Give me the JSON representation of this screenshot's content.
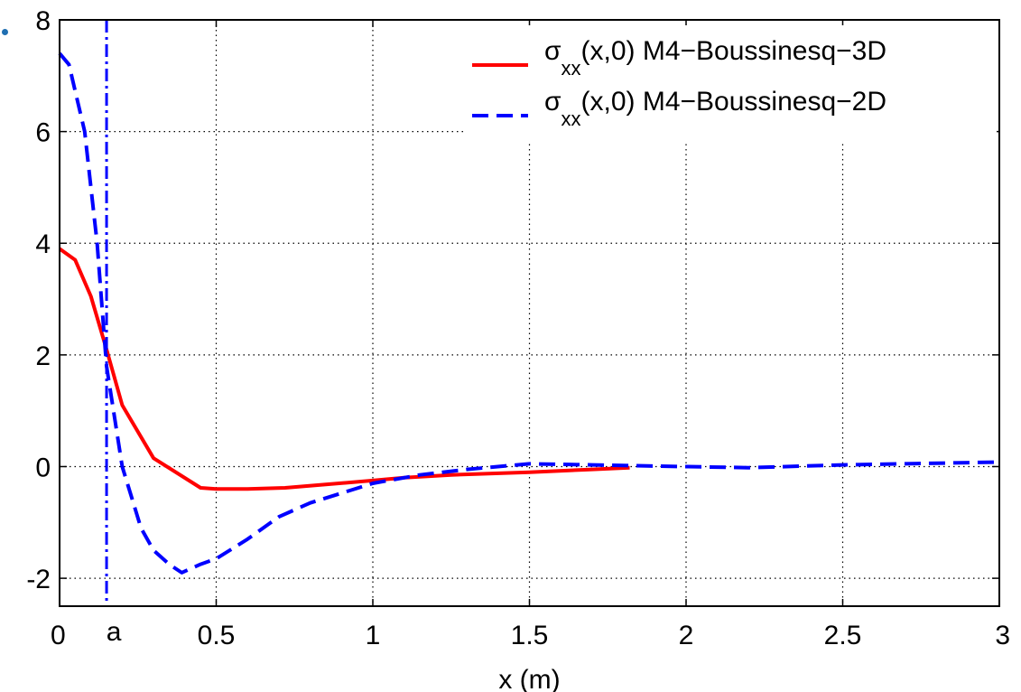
{
  "chart_data": {
    "type": "line",
    "title": "",
    "xlabel": "x (m)",
    "ylabel": "",
    "xlim": [
      0,
      3
    ],
    "ylim": [
      -2.5,
      8
    ],
    "xticks": [
      "0",
      "0.5",
      "1",
      "1.5",
      "2",
      "2.5",
      "3"
    ],
    "xtick_values": [
      0,
      0.5,
      1,
      1.5,
      2,
      2.5,
      3
    ],
    "yticks": [
      "-2",
      "0",
      "2",
      "4",
      "6",
      "8"
    ],
    "ytick_values": [
      -2,
      0,
      2,
      4,
      6,
      8
    ],
    "grid": true,
    "legend_position": "top-right",
    "marker_label": "a",
    "marker_x": 0.15,
    "series": [
      {
        "sym": "σ",
        "sub": "xx",
        "rest": "(x,0) M4−Boussinesq−3D",
        "color": "#ff0000",
        "style": "solid",
        "x": [
          0,
          0.05,
          0.1,
          0.15,
          0.2,
          0.3,
          0.45,
          0.5,
          0.6,
          0.72,
          0.85,
          1.0,
          1.1,
          1.25,
          1.5,
          1.7,
          1.82
        ],
        "y": [
          3.9,
          3.7,
          3.05,
          2.1,
          1.1,
          0.15,
          -0.38,
          -0.4,
          -0.4,
          -0.38,
          -0.32,
          -0.25,
          -0.2,
          -0.15,
          -0.1,
          -0.05,
          -0.02
        ]
      },
      {
        "sym": "σ",
        "sub": "xx",
        "rest": "(x,0) M4−Boussinesq−2D",
        "color": "#0000ff",
        "style": "dashed",
        "x": [
          0,
          0.03,
          0.08,
          0.12,
          0.15,
          0.2,
          0.26,
          0.3,
          0.35,
          0.39,
          0.45,
          0.5,
          0.6,
          0.7,
          0.8,
          1.0,
          1.15,
          1.3,
          1.5,
          1.7,
          2.0,
          2.2,
          2.5,
          3.0
        ],
        "y": [
          7.4,
          7.2,
          6.0,
          4.0,
          1.8,
          0.0,
          -1.1,
          -1.5,
          -1.75,
          -1.9,
          -1.75,
          -1.65,
          -1.3,
          -0.9,
          -0.65,
          -0.3,
          -0.15,
          -0.05,
          0.05,
          0.03,
          0.0,
          -0.02,
          0.03,
          0.08
        ]
      }
    ]
  }
}
